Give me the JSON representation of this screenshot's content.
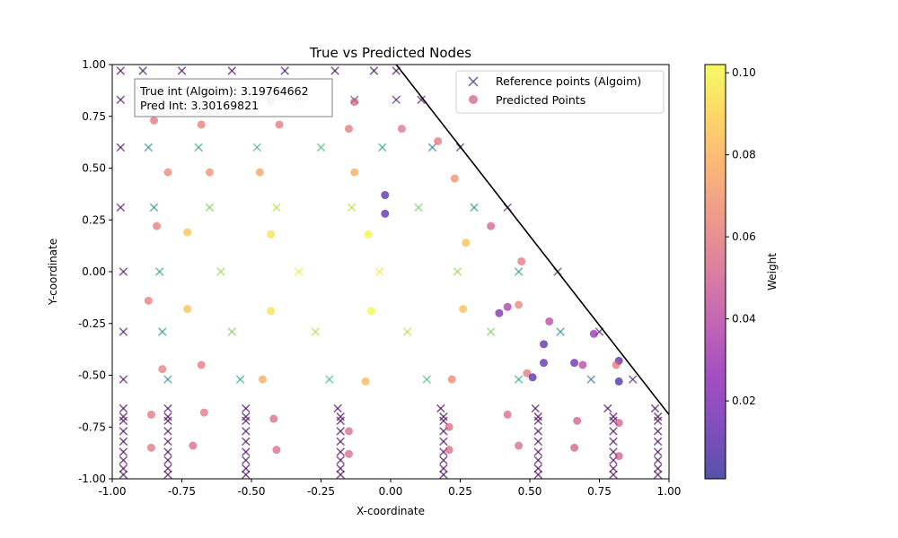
{
  "chart_data": {
    "type": "scatter",
    "title": "True vs Predicted Nodes",
    "xlabel": "X-coordinate",
    "ylabel": "Y-coordinate",
    "xlim": [
      -1.0,
      1.0
    ],
    "ylim": [
      -1.0,
      1.0
    ],
    "x_ticks": [
      "-1.00",
      "-0.75",
      "-0.50",
      "-0.25",
      "0.00",
      "0.25",
      "0.50",
      "0.75",
      "1.00"
    ],
    "y_ticks": [
      "-1.00",
      "-0.75",
      "-0.50",
      "-0.25",
      "0.00",
      "0.25",
      "0.50",
      "0.75",
      "1.00"
    ],
    "grid": false,
    "legend": {
      "position": "upper right",
      "entries": [
        {
          "label": "Reference points (Algoim)",
          "marker": "x"
        },
        {
          "label": "Predicted Points",
          "marker": "o"
        }
      ]
    },
    "annotation": {
      "lines": [
        "True int (Algoim): 3.19764662",
        "Pred Int: 3.30169821"
      ],
      "position": "upper left"
    },
    "boundary_line": {
      "x": [
        0.02,
        1.0
      ],
      "y": [
        1.0,
        -0.69
      ],
      "color": "#000000"
    },
    "colorbar": {
      "label": "Weight",
      "colormap": "plasma",
      "range": [
        0.001,
        0.102
      ],
      "ticks": [
        "0.02",
        "0.04",
        "0.06",
        "0.08",
        "0.10"
      ],
      "tick_values": [
        0.02,
        0.04,
        0.06,
        0.08,
        0.1
      ]
    },
    "series": [
      {
        "name": "Reference points (Algoim)",
        "marker": "x",
        "colormap": "viridis",
        "points": [
          [
            -0.97,
            0.97,
            0.002
          ],
          [
            -0.89,
            0.97,
            0.002
          ],
          [
            -0.75,
            0.97,
            0.002
          ],
          [
            -0.57,
            0.97,
            0.002
          ],
          [
            -0.38,
            0.97,
            0.002
          ],
          [
            -0.2,
            0.97,
            0.002
          ],
          [
            -0.06,
            0.97,
            0.002
          ],
          [
            0.02,
            0.97,
            0.002
          ],
          [
            -0.97,
            0.83,
            0.005
          ],
          [
            -0.88,
            0.83,
            0.01
          ],
          [
            -0.82,
            0.83,
            0.03
          ],
          [
            -0.57,
            0.83,
            0.04
          ],
          [
            -0.33,
            0.83,
            0.06
          ],
          [
            -0.13,
            0.83,
            0.03
          ],
          [
            0.02,
            0.83,
            0.01
          ],
          [
            0.11,
            0.83,
            0.005
          ],
          [
            -0.97,
            0.6,
            0.005
          ],
          [
            -0.87,
            0.6,
            0.05
          ],
          [
            -0.69,
            0.6,
            0.06
          ],
          [
            -0.48,
            0.6,
            0.07
          ],
          [
            -0.25,
            0.6,
            0.07
          ],
          [
            -0.03,
            0.6,
            0.06
          ],
          [
            0.15,
            0.6,
            0.04
          ],
          [
            0.25,
            0.6,
            0.01
          ],
          [
            -0.97,
            0.31,
            0.005
          ],
          [
            -0.85,
            0.31,
            0.05
          ],
          [
            -0.65,
            0.31,
            0.08
          ],
          [
            -0.41,
            0.31,
            0.09
          ],
          [
            -0.14,
            0.31,
            0.09
          ],
          [
            0.1,
            0.31,
            0.08
          ],
          [
            0.3,
            0.31,
            0.05
          ],
          [
            0.42,
            0.31,
            0.01
          ],
          [
            -0.96,
            0.0,
            0.005
          ],
          [
            -0.83,
            0.0,
            0.055
          ],
          [
            -0.61,
            0.0,
            0.085
          ],
          [
            -0.33,
            0.0,
            0.1
          ],
          [
            -0.04,
            0.0,
            0.1
          ],
          [
            0.24,
            0.0,
            0.085
          ],
          [
            0.46,
            0.0,
            0.055
          ],
          [
            0.6,
            0.0,
            0.01
          ],
          [
            -0.96,
            -0.29,
            0.005
          ],
          [
            -0.82,
            -0.29,
            0.05
          ],
          [
            -0.57,
            -0.29,
            0.08
          ],
          [
            -0.27,
            -0.29,
            0.09
          ],
          [
            0.06,
            -0.29,
            0.09
          ],
          [
            0.36,
            -0.29,
            0.08
          ],
          [
            0.61,
            -0.29,
            0.05
          ],
          [
            0.75,
            -0.29,
            0.01
          ],
          [
            -0.96,
            -0.52,
            0.005
          ],
          [
            -0.8,
            -0.52,
            0.05
          ],
          [
            -0.54,
            -0.52,
            0.06
          ],
          [
            -0.22,
            -0.52,
            0.07
          ],
          [
            0.13,
            -0.52,
            0.07
          ],
          [
            0.46,
            -0.52,
            0.06
          ],
          [
            0.72,
            -0.52,
            0.04
          ],
          [
            0.87,
            -0.52,
            0.01
          ],
          [
            -0.96,
            -0.66,
            0.002
          ],
          [
            -0.8,
            -0.66,
            0.002
          ],
          [
            -0.52,
            -0.66,
            0.002
          ],
          [
            -0.19,
            -0.66,
            0.002
          ],
          [
            0.18,
            -0.66,
            0.002
          ],
          [
            0.52,
            -0.66,
            0.002
          ],
          [
            0.78,
            -0.66,
            0.002
          ],
          [
            0.95,
            -0.66,
            0.002
          ],
          [
            -0.96,
            -0.7,
            0.002
          ],
          [
            -0.8,
            -0.7,
            0.002
          ],
          [
            -0.52,
            -0.7,
            0.002
          ],
          [
            -0.18,
            -0.7,
            0.002
          ],
          [
            0.19,
            -0.7,
            0.002
          ],
          [
            0.53,
            -0.7,
            0.002
          ],
          [
            0.8,
            -0.7,
            0.002
          ],
          [
            0.96,
            -0.7,
            0.002
          ],
          [
            -0.96,
            -0.72,
            0.002
          ],
          [
            -0.8,
            -0.72,
            0.002
          ],
          [
            -0.52,
            -0.72,
            0.002
          ],
          [
            -0.18,
            -0.72,
            0.002
          ],
          [
            0.19,
            -0.72,
            0.002
          ],
          [
            0.53,
            -0.72,
            0.002
          ],
          [
            0.8,
            -0.72,
            0.002
          ],
          [
            0.96,
            -0.72,
            0.002
          ],
          [
            -0.96,
            -0.77,
            0.002
          ],
          [
            -0.8,
            -0.77,
            0.002
          ],
          [
            -0.52,
            -0.77,
            0.002
          ],
          [
            -0.18,
            -0.77,
            0.002
          ],
          [
            0.19,
            -0.77,
            0.002
          ],
          [
            0.53,
            -0.77,
            0.002
          ],
          [
            0.8,
            -0.77,
            0.002
          ],
          [
            0.96,
            -0.77,
            0.002
          ],
          [
            -0.96,
            -0.82,
            0.002
          ],
          [
            -0.8,
            -0.82,
            0.002
          ],
          [
            -0.52,
            -0.82,
            0.002
          ],
          [
            -0.18,
            -0.82,
            0.002
          ],
          [
            0.19,
            -0.82,
            0.002
          ],
          [
            0.53,
            -0.82,
            0.002
          ],
          [
            0.8,
            -0.82,
            0.002
          ],
          [
            0.96,
            -0.82,
            0.002
          ],
          [
            -0.96,
            -0.87,
            0.002
          ],
          [
            -0.8,
            -0.87,
            0.002
          ],
          [
            -0.52,
            -0.87,
            0.002
          ],
          [
            -0.18,
            -0.87,
            0.002
          ],
          [
            0.19,
            -0.87,
            0.002
          ],
          [
            0.53,
            -0.87,
            0.002
          ],
          [
            0.8,
            -0.87,
            0.002
          ],
          [
            0.96,
            -0.87,
            0.002
          ],
          [
            -0.96,
            -0.91,
            0.002
          ],
          [
            -0.8,
            -0.91,
            0.002
          ],
          [
            -0.52,
            -0.91,
            0.002
          ],
          [
            -0.18,
            -0.91,
            0.002
          ],
          [
            0.19,
            -0.91,
            0.002
          ],
          [
            0.53,
            -0.91,
            0.002
          ],
          [
            0.8,
            -0.91,
            0.002
          ],
          [
            0.96,
            -0.91,
            0.002
          ],
          [
            -0.96,
            -0.95,
            0.002
          ],
          [
            -0.8,
            -0.95,
            0.002
          ],
          [
            -0.52,
            -0.95,
            0.002
          ],
          [
            -0.18,
            -0.95,
            0.002
          ],
          [
            0.19,
            -0.95,
            0.002
          ],
          [
            0.53,
            -0.95,
            0.002
          ],
          [
            0.8,
            -0.95,
            0.002
          ],
          [
            0.96,
            -0.95,
            0.002
          ],
          [
            -0.96,
            -0.98,
            0.002
          ],
          [
            -0.8,
            -0.98,
            0.002
          ],
          [
            -0.52,
            -0.98,
            0.002
          ],
          [
            -0.18,
            -0.98,
            0.002
          ],
          [
            0.19,
            -0.98,
            0.002
          ],
          [
            0.53,
            -0.98,
            0.002
          ],
          [
            0.8,
            -0.98,
            0.002
          ],
          [
            0.96,
            -0.98,
            0.002
          ]
        ]
      },
      {
        "name": "Predicted Points",
        "marker": "o",
        "colormap": "plasma",
        "points": [
          [
            -0.84,
            0.86,
            0.06
          ],
          [
            -0.67,
            0.86,
            0.062
          ],
          [
            -0.49,
            0.86,
            0.064
          ],
          [
            -0.43,
            0.82,
            0.06
          ],
          [
            -0.13,
            0.82,
            0.055
          ],
          [
            -0.85,
            0.73,
            0.058
          ],
          [
            -0.68,
            0.71,
            0.062
          ],
          [
            -0.4,
            0.71,
            0.06
          ],
          [
            -0.15,
            0.69,
            0.06
          ],
          [
            0.04,
            0.69,
            0.058
          ],
          [
            0.17,
            0.63,
            0.06
          ],
          [
            -0.8,
            0.48,
            0.065
          ],
          [
            -0.65,
            0.48,
            0.068
          ],
          [
            -0.47,
            0.48,
            0.075
          ],
          [
            -0.13,
            0.48,
            0.078
          ],
          [
            0.23,
            0.45,
            0.068
          ],
          [
            -0.02,
            0.37,
            0.01
          ],
          [
            -0.02,
            0.28,
            0.012
          ],
          [
            -0.84,
            0.22,
            0.062
          ],
          [
            -0.73,
            0.19,
            0.085
          ],
          [
            -0.43,
            0.18,
            0.095
          ],
          [
            -0.08,
            0.18,
            0.1
          ],
          [
            0.27,
            0.14,
            0.085
          ],
          [
            0.36,
            0.22,
            0.05
          ],
          [
            -0.87,
            -0.14,
            0.062
          ],
          [
            -0.73,
            -0.18,
            0.085
          ],
          [
            -0.43,
            -0.19,
            0.095
          ],
          [
            -0.07,
            -0.19,
            0.102
          ],
          [
            0.26,
            -0.18,
            0.085
          ],
          [
            0.47,
            0.05,
            0.06
          ],
          [
            0.46,
            -0.16,
            0.065
          ],
          [
            0.42,
            -0.17,
            0.035
          ],
          [
            0.39,
            -0.2,
            0.02
          ],
          [
            0.57,
            -0.24,
            0.04
          ],
          [
            0.73,
            -0.3,
            0.03
          ],
          [
            0.55,
            -0.35,
            0.01
          ],
          [
            0.55,
            -0.44,
            0.012
          ],
          [
            0.66,
            -0.44,
            0.015
          ],
          [
            0.69,
            -0.45,
            0.04
          ],
          [
            0.82,
            -0.43,
            0.012
          ],
          [
            0.81,
            -0.45,
            0.06
          ],
          [
            0.49,
            -0.49,
            0.06
          ],
          [
            0.51,
            -0.51,
            0.01
          ],
          [
            0.82,
            -0.53,
            0.008
          ],
          [
            -0.82,
            -0.47,
            0.062
          ],
          [
            -0.68,
            -0.45,
            0.06
          ],
          [
            -0.46,
            -0.52,
            0.078
          ],
          [
            -0.09,
            -0.53,
            0.082
          ],
          [
            0.22,
            -0.52,
            0.065
          ],
          [
            -0.86,
            -0.69,
            0.058
          ],
          [
            -0.67,
            -0.68,
            0.058
          ],
          [
            -0.42,
            -0.71,
            0.055
          ],
          [
            -0.15,
            -0.77,
            0.055
          ],
          [
            0.21,
            -0.75,
            0.055
          ],
          [
            0.42,
            -0.69,
            0.055
          ],
          [
            0.67,
            -0.72,
            0.05
          ],
          [
            0.82,
            -0.73,
            0.05
          ],
          [
            -0.86,
            -0.85,
            0.058
          ],
          [
            -0.71,
            -0.84,
            0.055
          ],
          [
            -0.41,
            -0.86,
            0.055
          ],
          [
            -0.15,
            -0.88,
            0.055
          ],
          [
            0.21,
            -0.86,
            0.055
          ],
          [
            0.46,
            -0.84,
            0.055
          ],
          [
            0.66,
            -0.85,
            0.05
          ],
          [
            0.82,
            -0.89,
            0.05
          ]
        ]
      }
    ]
  }
}
